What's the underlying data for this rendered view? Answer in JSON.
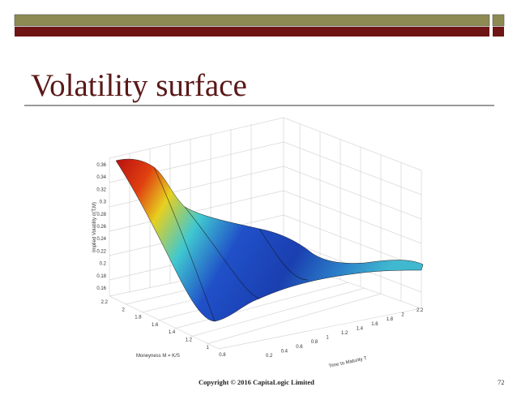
{
  "header": {
    "title": "Volatility surface"
  },
  "figure": {
    "z_label": "Implied Volatility σ(T,M)",
    "x_label": "Moneyness M = K/S",
    "y_label": "Time to Maturity T",
    "z_ticks": [
      "0.36",
      "0.34",
      "0.32",
      "0.3",
      "0.28",
      "0.26",
      "0.24",
      "0.22",
      "0.2",
      "0.18",
      "0.16"
    ],
    "moneyness_ticks": [
      "2.2",
      "2",
      "1.8",
      "1.6",
      "1.4",
      "1.2",
      "1",
      "0.8"
    ],
    "maturity_ticks": [
      "0.2",
      "0.4",
      "0.6",
      "0.8",
      "1",
      "1.2",
      "1.4",
      "1.6",
      "1.8",
      "2",
      "2.2"
    ]
  },
  "footer": {
    "copyright": "Copyright © 2016 CapitaLogic Limited",
    "page": "72"
  }
}
